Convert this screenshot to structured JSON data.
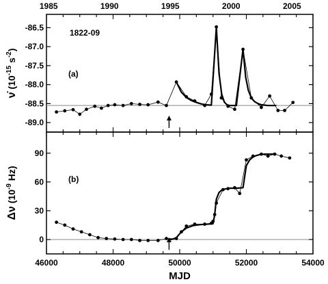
{
  "chart_data": [
    {
      "type": "line",
      "panel_label": "(a)",
      "annotation": "1822-09",
      "ylabel_symbol": "ν̇",
      "ylabel_units": "(10",
      "ylabel_exp": "-15",
      "ylabel_units2": " s",
      "ylabel_exp2": "-2",
      "ylabel_close": ")",
      "xlim": [
        46000,
        54000
      ],
      "ylim": [
        -89.25,
        -86.15
      ],
      "yticks": [
        -86.5,
        -87.0,
        -87.5,
        -88.0,
        -88.5,
        -89.0
      ],
      "ytick_labels": [
        "-86.5",
        "-87.0",
        "-87.5",
        "-88.0",
        "-88.5",
        "-89.0"
      ],
      "top_xticks": [
        1985,
        1990,
        1995,
        2000,
        2005
      ],
      "top_xtick_labels": [
        "1985",
        "1990",
        "1995",
        "2000",
        "2005"
      ],
      "top_xtick_mjd": [
        46066,
        47892,
        49718,
        51544,
        53371
      ],
      "reference_level": -88.55,
      "glitch_arrow_mjd": 49680,
      "series": [
        {
          "kind": "observed",
          "x": [
            46300,
            46550,
            46800,
            47000,
            47200,
            47450,
            47650,
            47850,
            48050,
            48300,
            48550,
            48800,
            49050,
            49350,
            49600,
            49900,
            50200,
            50450,
            50750,
            50950,
            51100,
            51250,
            51450,
            51650,
            51900,
            52150,
            52450,
            52700,
            52950,
            53150,
            53400
          ],
          "y": [
            -88.72,
            -88.69,
            -88.66,
            -88.78,
            -88.65,
            -88.57,
            -88.62,
            -88.55,
            -88.53,
            -88.55,
            -88.5,
            -88.52,
            -88.53,
            -88.46,
            -88.55,
            -87.93,
            -88.32,
            -88.43,
            -88.55,
            -88.25,
            -86.48,
            -88.35,
            -88.57,
            -88.65,
            -87.07,
            -88.35,
            -88.6,
            -88.3,
            -88.68,
            -88.68,
            -88.47
          ]
        },
        {
          "kind": "model",
          "x": [
            49900,
            50050,
            50200,
            50350,
            50500,
            50650,
            50800,
            50950,
            51100,
            51180,
            51260,
            51340,
            51420,
            51500,
            51600,
            51700,
            51900,
            51980,
            52060,
            52150,
            52250,
            52350,
            52450,
            52550,
            52650,
            52750,
            52900
          ],
          "y": [
            -87.93,
            -88.2,
            -88.34,
            -88.42,
            -88.47,
            -88.51,
            -88.53,
            -88.54,
            -86.48,
            -87.7,
            -88.25,
            -88.46,
            -88.53,
            -88.55,
            -88.55,
            -88.55,
            -87.07,
            -87.8,
            -88.15,
            -88.35,
            -88.45,
            -88.5,
            -88.53,
            -88.54,
            -88.55,
            -88.55,
            -88.55
          ]
        }
      ]
    },
    {
      "type": "line",
      "panel_label": "(b)",
      "ylabel_symbol": "Δν",
      "ylabel_units": " (10",
      "ylabel_exp": "-9",
      "ylabel_units2": " Hz)",
      "xlabel": "MJD",
      "xlim": [
        46000,
        54000
      ],
      "ylim": [
        -15,
        112
      ],
      "yticks": [
        0,
        30,
        60,
        90
      ],
      "ytick_labels": [
        "0",
        "30",
        "60",
        "90"
      ],
      "xticks": [
        46000,
        48000,
        50000,
        52000,
        54000
      ],
      "xtick_labels": [
        "46000",
        "48000",
        "50000",
        "52000",
        "54000"
      ],
      "reference_level": 0,
      "glitch_arrow_mjd": 49680,
      "series": [
        {
          "kind": "observed",
          "x": [
            46300,
            46550,
            46800,
            47050,
            47300,
            47550,
            47800,
            48050,
            48300,
            48550,
            48800,
            49050,
            49350,
            49600,
            49900,
            50050,
            50200,
            50450,
            50750,
            50950,
            51000,
            51050,
            51100,
            51300,
            51450,
            51650,
            51800,
            52000,
            52200,
            52450,
            52650,
            52850,
            53050,
            53300
          ],
          "y": [
            18,
            15,
            11,
            8,
            5,
            2,
            1,
            0.5,
            0,
            0,
            -1,
            -1,
            -1,
            1,
            1,
            8,
            14,
            16,
            16,
            17,
            19,
            26,
            38,
            52,
            53,
            54,
            48,
            83,
            87,
            89,
            87,
            89,
            87,
            85
          ]
        },
        {
          "kind": "model",
          "x": [
            49650,
            49720,
            49800,
            49900,
            50050,
            50200,
            50400,
            50600,
            50800,
            51000,
            51050,
            51100,
            51180,
            51260,
            51340,
            51420,
            51500,
            51600,
            51700,
            51900,
            52000,
            52100,
            52200,
            52300,
            52400,
            52550,
            52700,
            52900
          ],
          "y": [
            0,
            0,
            0.5,
            2,
            8,
            12,
            14.5,
            15.5,
            16,
            16.5,
            26,
            42,
            49,
            51.5,
            52.5,
            53,
            53.5,
            53.5,
            53.5,
            54,
            77,
            83,
            86,
            87.5,
            88.5,
            89,
            89,
            89
          ]
        }
      ]
    }
  ]
}
